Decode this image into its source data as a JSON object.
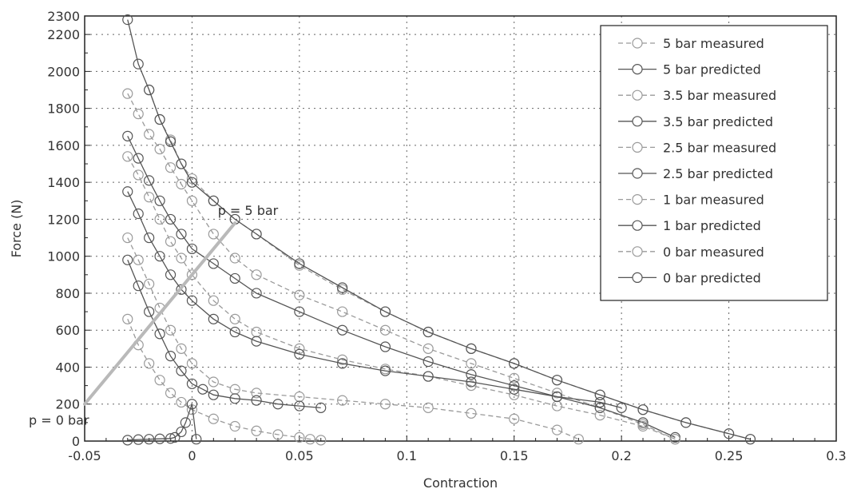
{
  "chart_data": {
    "type": "line",
    "title": "",
    "xlabel": "Contraction",
    "ylabel": "Force (N)",
    "xlim": [
      -0.05,
      0.3
    ],
    "ylim": [
      0,
      2300
    ],
    "xticks": [
      -0.05,
      0,
      0.05,
      0.1,
      0.15,
      0.2,
      0.25,
      0.3
    ],
    "xtick_labels": [
      "-0.05",
      "0",
      "0.05",
      "0.1",
      "0.15",
      "0.2",
      "0.25",
      "0.3"
    ],
    "yticks": [
      0,
      200,
      400,
      600,
      800,
      1000,
      1200,
      1400,
      1600,
      1800,
      2000,
      2200,
      2300
    ],
    "ytick_labels": [
      "0",
      "200",
      "400",
      "600",
      "800",
      "1000",
      "1200",
      "1400",
      "1600",
      "1800",
      "2000",
      "2200",
      "2300"
    ],
    "grid": true,
    "legend_position": "top-right",
    "annotations": [
      {
        "text": "p = 5 bar",
        "x": 0.012,
        "y": 1250
      },
      {
        "text": "p = 0 bar",
        "x": -0.075,
        "y": 115
      }
    ],
    "pressure_line": {
      "from": [
        -0.05,
        200
      ],
      "to": [
        0.02,
        1180
      ]
    },
    "series": [
      {
        "name": "5 bar measured",
        "style": "dashed",
        "color": "#9a9a9a",
        "x": [
          -0.02,
          -0.015,
          -0.01,
          -0.005,
          0.0,
          0.01,
          0.02,
          0.03,
          0.05,
          0.07,
          0.09,
          0.11,
          0.13,
          0.15,
          0.17,
          0.19,
          0.21,
          0.23,
          0.25,
          0.26
        ],
        "y": [
          1900,
          1740,
          1630,
          1500,
          1420,
          1300,
          1200,
          1120,
          950,
          820,
          700,
          590,
          500,
          420,
          330,
          250,
          170,
          100,
          40,
          10
        ]
      },
      {
        "name": "5 bar predicted",
        "style": "solid",
        "color": "#555555",
        "x": [
          -0.03,
          -0.025,
          -0.02,
          -0.015,
          -0.01,
          -0.005,
          0.0,
          0.01,
          0.02,
          0.03,
          0.05,
          0.07,
          0.09,
          0.11,
          0.13,
          0.15,
          0.17,
          0.19,
          0.21,
          0.23,
          0.25,
          0.26
        ],
        "y": [
          2280,
          2040,
          1900,
          1740,
          1620,
          1500,
          1400,
          1300,
          1200,
          1120,
          960,
          830,
          700,
          590,
          500,
          420,
          330,
          250,
          170,
          100,
          40,
          10
        ]
      },
      {
        "name": "3.5 bar measured",
        "style": "dashed",
        "color": "#9a9a9a",
        "x": [
          -0.03,
          -0.025,
          -0.02,
          -0.015,
          -0.01,
          -0.005,
          0.0,
          0.01,
          0.02,
          0.03,
          0.05,
          0.07,
          0.09,
          0.11,
          0.13,
          0.15,
          0.17,
          0.19,
          0.21,
          0.225
        ],
        "y": [
          1880,
          1770,
          1660,
          1580,
          1480,
          1390,
          1300,
          1120,
          990,
          900,
          790,
          700,
          600,
          500,
          420,
          340,
          260,
          180,
          90,
          10
        ]
      },
      {
        "name": "3.5 bar predicted",
        "style": "solid",
        "color": "#555555",
        "x": [
          -0.03,
          -0.025,
          -0.02,
          -0.015,
          -0.01,
          -0.005,
          0.0,
          0.01,
          0.02,
          0.03,
          0.05,
          0.07,
          0.09,
          0.11,
          0.13,
          0.15,
          0.17,
          0.19,
          0.21,
          0.225
        ],
        "y": [
          1650,
          1530,
          1410,
          1300,
          1200,
          1120,
          1040,
          960,
          880,
          800,
          700,
          600,
          510,
          430,
          360,
          300,
          240,
          180,
          100,
          20
        ]
      },
      {
        "name": "2.5 bar measured",
        "style": "dashed",
        "color": "#9a9a9a",
        "x": [
          -0.03,
          -0.025,
          -0.02,
          -0.015,
          -0.01,
          -0.005,
          0.0,
          0.01,
          0.02,
          0.03,
          0.05,
          0.07,
          0.09,
          0.11,
          0.13,
          0.15,
          0.17,
          0.19,
          0.21,
          0.225
        ],
        "y": [
          1540,
          1440,
          1320,
          1200,
          1080,
          990,
          900,
          760,
          660,
          590,
          500,
          440,
          390,
          350,
          300,
          250,
          190,
          140,
          80,
          10
        ]
      },
      {
        "name": "2.5 bar predicted",
        "style": "solid",
        "color": "#555555",
        "x": [
          -0.03,
          -0.025,
          -0.02,
          -0.015,
          -0.01,
          -0.005,
          0.0,
          0.01,
          0.02,
          0.03,
          0.05,
          0.07,
          0.09,
          0.11,
          0.13,
          0.15,
          0.17,
          0.19,
          0.2
        ],
        "y": [
          1350,
          1230,
          1100,
          1000,
          900,
          820,
          760,
          660,
          590,
          540,
          470,
          420,
          380,
          350,
          320,
          280,
          240,
          210,
          180
        ]
      },
      {
        "name": "1 bar measured",
        "style": "dashed",
        "color": "#9a9a9a",
        "x": [
          -0.03,
          -0.025,
          -0.02,
          -0.015,
          -0.01,
          -0.005,
          0.0,
          0.01,
          0.02,
          0.03,
          0.05,
          0.07,
          0.09,
          0.11,
          0.13,
          0.15,
          0.17,
          0.18
        ],
        "y": [
          1100,
          980,
          850,
          720,
          600,
          500,
          420,
          320,
          280,
          260,
          240,
          220,
          200,
          180,
          150,
          120,
          60,
          10
        ]
      },
      {
        "name": "1 bar predicted",
        "style": "solid",
        "color": "#555555",
        "x": [
          -0.03,
          -0.025,
          -0.02,
          -0.015,
          -0.01,
          -0.005,
          0.0,
          0.005,
          0.01,
          0.02,
          0.03,
          0.04,
          0.05,
          0.06
        ],
        "y": [
          980,
          840,
          700,
          580,
          460,
          380,
          310,
          280,
          250,
          230,
          220,
          200,
          190,
          180
        ]
      },
      {
        "name": "0 bar measured",
        "style": "dashed",
        "color": "#9a9a9a",
        "x": [
          -0.03,
          -0.025,
          -0.02,
          -0.015,
          -0.01,
          -0.005,
          0.0,
          0.01,
          0.02,
          0.03,
          0.04,
          0.05,
          0.055,
          0.06
        ],
        "y": [
          660,
          520,
          420,
          330,
          260,
          210,
          170,
          120,
          80,
          55,
          35,
          20,
          10,
          5
        ]
      },
      {
        "name": "0 bar predicted",
        "style": "solid",
        "color": "#555555",
        "x": [
          -0.03,
          -0.025,
          -0.02,
          -0.015,
          -0.01,
          -0.008,
          -0.005,
          -0.003,
          0.0,
          0.002
        ],
        "y": [
          5,
          8,
          10,
          12,
          14,
          20,
          50,
          100,
          200,
          10
        ]
      }
    ]
  }
}
